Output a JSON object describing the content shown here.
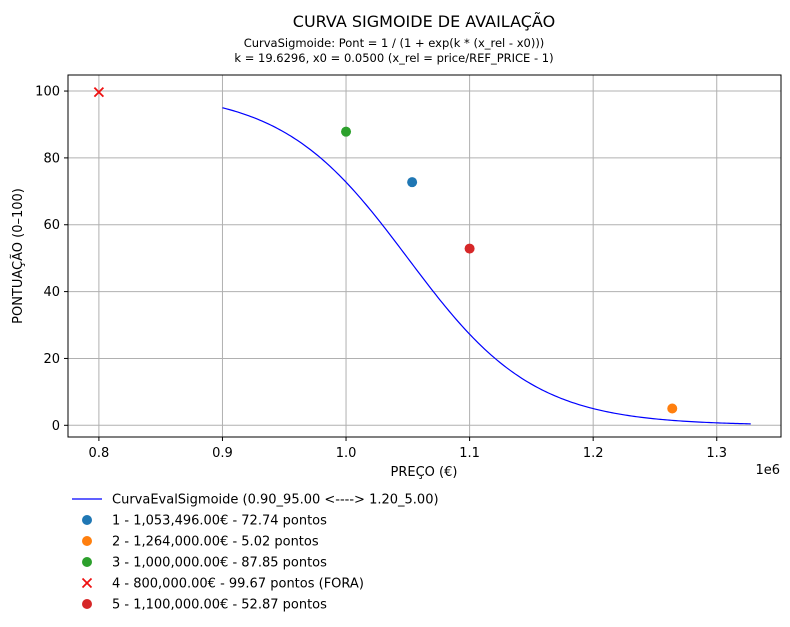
{
  "chart_data": {
    "type": "scatter",
    "title": "CURVA SIGMOIDE DE AVAILAÇÃO",
    "subtitle_lines": [
      "CurvaSigmoide: Pont = 1 / (1 + exp(k * (x_rel - x0)))",
      "k = 19.6296, x0 = 0.0500 (x_rel = price/REF_PRICE - 1)"
    ],
    "xlabel": "PREÇO (€)",
    "ylabel": "PONTUAÇÃO (0–100)",
    "x_offset_text": "1e6",
    "xlim": [
      0.775,
      1.352
    ],
    "ylim": [
      -3.5,
      104.8
    ],
    "x_ticks": [
      0.8,
      0.9,
      1.0,
      1.1,
      1.2,
      1.3
    ],
    "x_tick_labels": [
      "0.8",
      "0.9",
      "1.0",
      "1.1",
      "1.2",
      "1.3"
    ],
    "y_ticks": [
      0,
      20,
      40,
      60,
      80,
      100
    ],
    "y_tick_labels": [
      "0",
      "20",
      "40",
      "60",
      "80",
      "100"
    ],
    "grid": true,
    "legend_position": "below-left",
    "curve": {
      "name": "CurvaEvalSigmoide (0.90_95.00 <----> 1.20_5.00)",
      "color": "#0000ff",
      "ref_price": 1.0,
      "k": 19.6296,
      "x0": 0.05,
      "x_range": [
        0.9,
        1.3275
      ]
    },
    "points": [
      {
        "name": "1 - 1,053,496.00€ - 72.74 pontos",
        "x": 1.053496,
        "y": 72.74,
        "color": "#1f77b4",
        "marker": "circle"
      },
      {
        "name": "2 - 1,264,000.00€ - 5.02 pontos",
        "x": 1.264,
        "y": 5.02,
        "color": "#ff7f0e",
        "marker": "circle"
      },
      {
        "name": "3 - 1,000,000.00€ - 87.85 pontos",
        "x": 1.0,
        "y": 87.85,
        "color": "#2ca02c",
        "marker": "circle"
      },
      {
        "name": "4 - 800,000.00€ - 99.67 pontos (FORA)",
        "x": 0.8,
        "y": 99.67,
        "color": "#ee1111",
        "marker": "x"
      },
      {
        "name": "5 - 1,100,000.00€ - 52.87 pontos",
        "x": 1.1,
        "y": 52.87,
        "color": "#d62728",
        "marker": "circle"
      }
    ]
  }
}
